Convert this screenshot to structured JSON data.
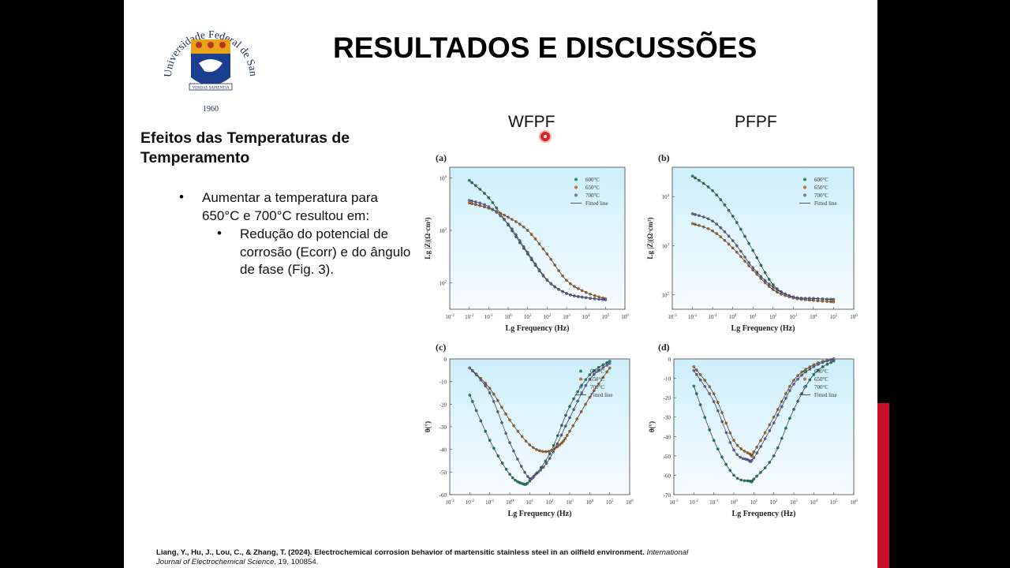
{
  "slide": {
    "title": "RESULTADOS E DISCUSSÕES",
    "logo": {
      "text": "Universidade Federal de Santa Maria",
      "year": "1960",
      "motto": "VERDAS SAPIENTIA"
    },
    "subheading": "Efeitos das Temperaturas de Temperamento",
    "bullet1": "Aumentar a temperatura para 650°C e 700°C resultou em:",
    "bullet2": "Redução do potencial de corrosão (Ecorr) e do ângulo de fase (Fig. 3).",
    "column_left": "WFPF",
    "column_right": "PFPF",
    "reference_main": "Liang, Y., Hu, J., Lou, C., & Zhang, T. (2024). Electrochemical corrosion behavior of martensitic stainless steel in an oilfield environment.",
    "reference_journal": "International Journal of Electrochemical Science",
    "reference_tail": ", 19, 100854.",
    "colors": {
      "bg": "#000000",
      "accent": "#c8102e",
      "c600": "#1a9c6a",
      "c650": "#e07a1f",
      "c700": "#7a78c8",
      "plot_bg": "#dff3fb"
    }
  },
  "chart_data": [
    {
      "panel": "(a)",
      "type": "scatter",
      "ylog": true,
      "xlabel": "Lg Frequency (Hz)",
      "ylabel": "Lg |Z|(Ω·cm²)",
      "xlim": [
        -3,
        6
      ],
      "ylim": [
        1.5,
        4.2
      ],
      "xticks": [
        -3,
        -2,
        -1,
        0,
        1,
        2,
        3,
        4,
        5,
        6
      ],
      "yticks": [
        2,
        3,
        4
      ],
      "legend": [
        "600°C",
        "650°C",
        "700°C",
        "Fitted line"
      ],
      "series": [
        {
          "name": "600°C",
          "x": [
            -2,
            -1,
            0,
            1,
            2,
            3,
            4,
            5
          ],
          "y": [
            3.95,
            3.62,
            3.1,
            2.55,
            2.05,
            1.8,
            1.72,
            1.68
          ]
        },
        {
          "name": "650°C",
          "x": [
            -2,
            -1,
            0,
            1,
            2,
            3,
            4,
            5
          ],
          "y": [
            3.52,
            3.42,
            3.25,
            3.0,
            2.55,
            2.05,
            1.82,
            1.7
          ]
        },
        {
          "name": "700°C",
          "x": [
            -2,
            -1,
            0,
            1,
            2,
            3,
            4,
            5
          ],
          "y": [
            3.57,
            3.45,
            3.12,
            2.58,
            2.06,
            1.8,
            1.72,
            1.68
          ]
        }
      ]
    },
    {
      "panel": "(b)",
      "type": "scatter",
      "ylog": true,
      "xlabel": "Lg Frequency (Hz)",
      "ylabel": "Lg |Z|(Ω·cm²)",
      "xlim": [
        -3,
        6
      ],
      "ylim": [
        1.7,
        4.6
      ],
      "xticks": [
        -3,
        -2,
        -1,
        0,
        1,
        2,
        3,
        4,
        5,
        6
      ],
      "yticks": [
        2,
        3,
        4
      ],
      "legend": [
        "600°C",
        "650°C",
        "700°C",
        "Fitted line"
      ],
      "series": [
        {
          "name": "600°C",
          "x": [
            -2,
            -1,
            0,
            1,
            2,
            3,
            4,
            5
          ],
          "y": [
            4.42,
            4.12,
            3.6,
            2.9,
            2.2,
            1.95,
            1.92,
            1.9
          ]
        },
        {
          "name": "650°C",
          "x": [
            -2,
            -1,
            0,
            1,
            2,
            3,
            4,
            5
          ],
          "y": [
            3.45,
            3.3,
            2.95,
            2.5,
            2.1,
            1.93,
            1.88,
            1.85
          ]
        },
        {
          "name": "700°C",
          "x": [
            -2,
            -1,
            0,
            1,
            2,
            3,
            4,
            5
          ],
          "y": [
            3.65,
            3.5,
            3.1,
            2.55,
            2.15,
            1.95,
            1.92,
            1.9
          ]
        }
      ]
    },
    {
      "panel": "(c)",
      "type": "scatter",
      "xlabel": "Lg Frequency (Hz)",
      "ylabel": "θ(°)",
      "xlim": [
        -3,
        6
      ],
      "ylim": [
        -60,
        0
      ],
      "xticks": [
        -3,
        -2,
        -1,
        0,
        1,
        2,
        3,
        4,
        5,
        6
      ],
      "yticks": [
        -60,
        -50,
        -40,
        -30,
        -20,
        -10,
        0
      ],
      "legend": [
        "600°C",
        "650°C",
        "700°C",
        "Fitted line"
      ],
      "series": [
        {
          "name": "600°C",
          "x": [
            -2,
            -1,
            0,
            0.6,
            1,
            2,
            3,
            4,
            5
          ],
          "y": [
            -16,
            -36,
            -51,
            -55,
            -54,
            -42,
            -21,
            -7,
            -1
          ]
        },
        {
          "name": "650°C",
          "x": [
            -2,
            -1,
            0,
            1,
            1.8,
            2.5,
            3,
            4,
            5
          ],
          "y": [
            -4,
            -13,
            -27,
            -38,
            -41,
            -38,
            -32,
            -17,
            -4
          ]
        },
        {
          "name": "700°C",
          "x": [
            -2,
            -1,
            0,
            0.9,
            1.3,
            2,
            3,
            4,
            5
          ],
          "y": [
            -4,
            -15,
            -37,
            -52,
            -51,
            -44,
            -26,
            -9,
            -2
          ]
        }
      ]
    },
    {
      "panel": "(d)",
      "type": "scatter",
      "xlabel": "Lg Frequency (Hz)",
      "ylabel": "θ(°)",
      "xlim": [
        -3,
        6
      ],
      "ylim": [
        -70,
        0
      ],
      "xticks": [
        -3,
        -2,
        -1,
        0,
        1,
        2,
        3,
        4,
        5,
        6
      ],
      "yticks": [
        -70,
        -60,
        -50,
        -40,
        -30,
        -20,
        -10,
        0
      ],
      "legend": [
        "600°C",
        "650°C",
        "700°C",
        "Fitted line"
      ],
      "series": [
        {
          "name": "600°C",
          "x": [
            -2,
            -1,
            0,
            0.8,
            1,
            2,
            3,
            4,
            5
          ],
          "y": [
            -14,
            -42,
            -60,
            -63,
            -62,
            -50,
            -26,
            -8,
            -1
          ]
        },
        {
          "name": "650°C",
          "x": [
            -2,
            -1,
            0,
            0.8,
            1,
            2,
            3,
            4,
            5
          ],
          "y": [
            -4,
            -18,
            -42,
            -49,
            -48,
            -30,
            -11,
            -3,
            0
          ]
        },
        {
          "name": "700°C",
          "x": [
            -2,
            -1,
            0,
            0.7,
            1,
            2,
            3,
            4,
            5
          ],
          "y": [
            -6,
            -22,
            -47,
            -52,
            -51,
            -33,
            -13,
            -4,
            0
          ]
        }
      ]
    }
  ]
}
